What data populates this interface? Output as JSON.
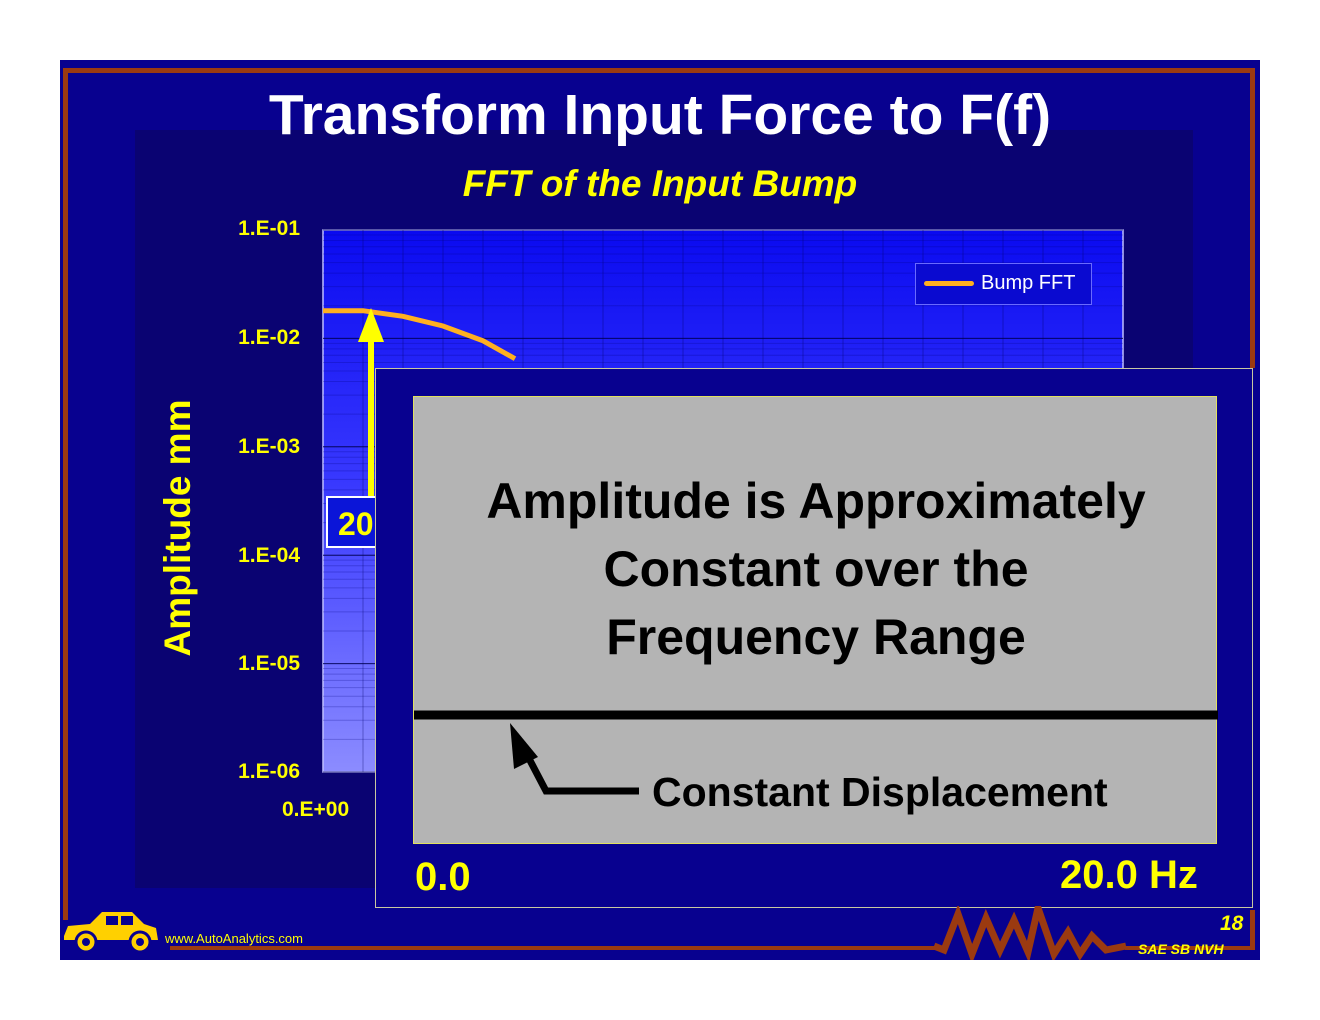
{
  "slide": {
    "title": "Transform Input Force to F(f)",
    "page_number": "18",
    "footer_tag": "SAE SB NVH",
    "footer_url": "www.AutoAnalytics.com",
    "colors": {
      "background": "#08018f",
      "frame": "#9b3a10",
      "accent_text": "#ffff00",
      "plot_bg": "#1010f0",
      "curve": "#ffb020"
    },
    "icons": [
      "car-logo-icon",
      "waveform-icon"
    ]
  },
  "chart_data": {
    "type": "line",
    "title": "FFT of the Input Bump",
    "ylabel": "Amplitude  mm",
    "xlabel": "",
    "yscale": "log",
    "ylim": [
      1e-06,
      0.1
    ],
    "yticks": [
      "1.E-01",
      "1.E-02",
      "1.E-03",
      "1.E-04",
      "1.E-05",
      "1.E-06"
    ],
    "xticks_visible": [
      "0.E+00"
    ],
    "grid": true,
    "legend": "top-right",
    "series": [
      {
        "name": "Bump FFT",
        "x": [
          0,
          1,
          2,
          3,
          4,
          4.8
        ],
        "y": [
          0.018,
          0.018,
          0.016,
          0.013,
          0.0095,
          0.0065
        ]
      }
    ]
  },
  "annotation": {
    "badge_text": "20"
  },
  "overlay": {
    "headline": [
      "Amplitude is Approximately",
      "Constant over the",
      "Frequency Range"
    ],
    "line_label": "Constant Displacement",
    "x_start": "0.0",
    "x_end": "20.0 Hz"
  }
}
